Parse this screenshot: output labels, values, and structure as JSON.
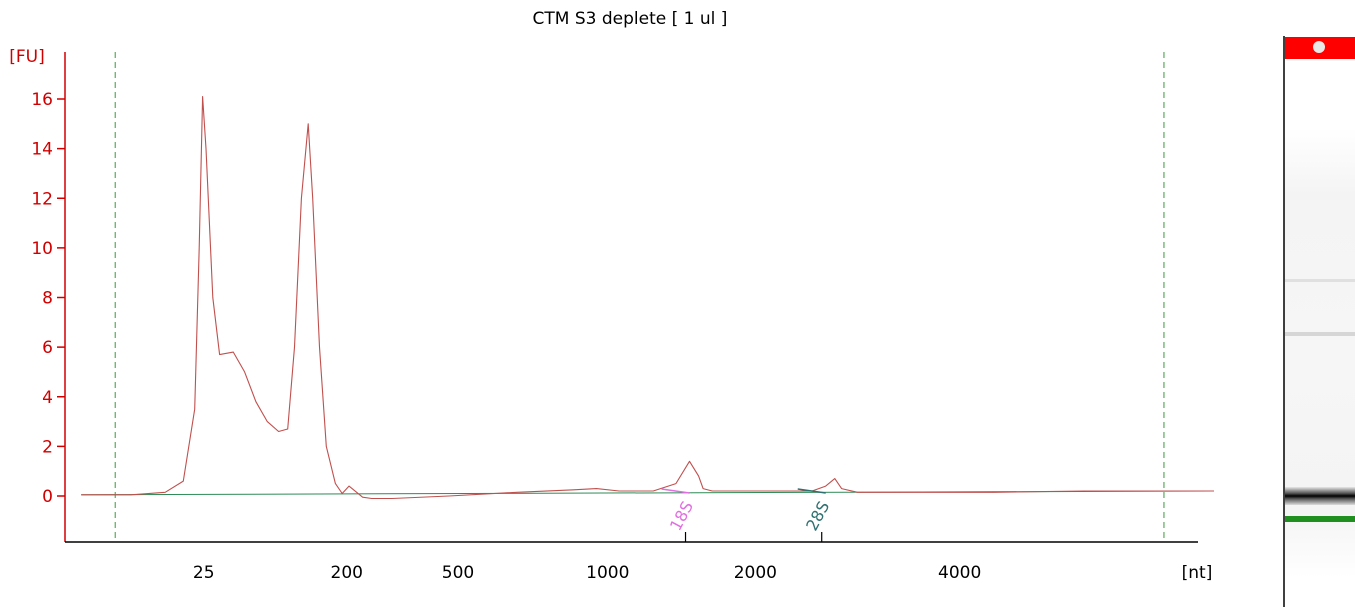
{
  "chart_data": {
    "type": "line",
    "title": "CTM S3 deplete  [ 1 ul ]",
    "ylabel": "[FU]",
    "xlabel": "[nt]",
    "ylim": [
      -2,
      17.5
    ],
    "y_ticks": [
      0,
      2,
      4,
      6,
      8,
      10,
      12,
      14,
      16
    ],
    "x_ticks": [
      {
        "label": "25",
        "at_time": 19.2
      },
      {
        "label": "200",
        "at_time": 25.5
      },
      {
        "label": "500",
        "at_time": 30.4
      },
      {
        "label": "1000",
        "at_time": 37.0
      },
      {
        "label": "2000",
        "at_time": 43.5
      },
      {
        "label": "4000",
        "at_time": 52.5
      }
    ],
    "xlim_time": [
      13.0,
      63.0
    ],
    "grid": false,
    "colors": {
      "axis": "#d00000",
      "trace": "#c0504d",
      "baseline": "#2e8b57",
      "marker_line": "#3a9a3a",
      "label_18s": "#e070e0",
      "label_28s": "#2f7070"
    },
    "series": [
      {
        "name": "",
        "x": [
          13.8,
          16.0,
          17.5,
          18.3,
          18.8,
          19.0,
          19.15,
          19.3,
          19.6,
          19.9,
          20.5,
          21.0,
          21.5,
          22.0,
          22.5,
          22.9,
          23.2,
          23.5,
          23.8,
          24.0,
          24.3,
          24.6,
          25.0,
          25.3,
          25.6,
          26.2,
          26.6,
          27.5,
          30.0,
          33.0,
          35.5,
          36.5,
          37.5,
          39.0,
          40.0,
          40.6,
          41.0,
          41.2,
          41.6,
          42.0,
          43.0,
          44.0,
          45.0,
          46.0,
          46.6,
          47.0,
          47.3,
          48.0,
          50.0,
          54.0,
          58.0,
          62.0,
          63.7
        ],
        "values": [
          0.05,
          0.05,
          0.15,
          0.6,
          3.5,
          10.0,
          16.1,
          14.0,
          8.0,
          5.7,
          5.8,
          5.0,
          3.8,
          3.0,
          2.6,
          2.7,
          6.0,
          12.0,
          15.0,
          12.0,
          6.0,
          2.0,
          0.5,
          0.1,
          0.4,
          -0.05,
          -0.1,
          -0.1,
          0.0,
          0.15,
          0.25,
          0.3,
          0.2,
          0.2,
          0.5,
          1.4,
          0.8,
          0.3,
          0.2,
          0.2,
          0.2,
          0.2,
          0.2,
          0.2,
          0.4,
          0.7,
          0.3,
          0.15,
          0.15,
          0.15,
          0.2,
          0.2,
          0.2
        ]
      }
    ],
    "baseline": {
      "x": [
        13.8,
        63.7
      ],
      "values": [
        0.05,
        0.2
      ]
    },
    "markers_time": [
      15.3,
      61.5
    ],
    "annotations": [
      {
        "label": "18S",
        "at_time": 40.6,
        "at_value": 0.2
      },
      {
        "label": "28S",
        "at_time": 46.6,
        "at_value": 0.2
      }
    ]
  }
}
